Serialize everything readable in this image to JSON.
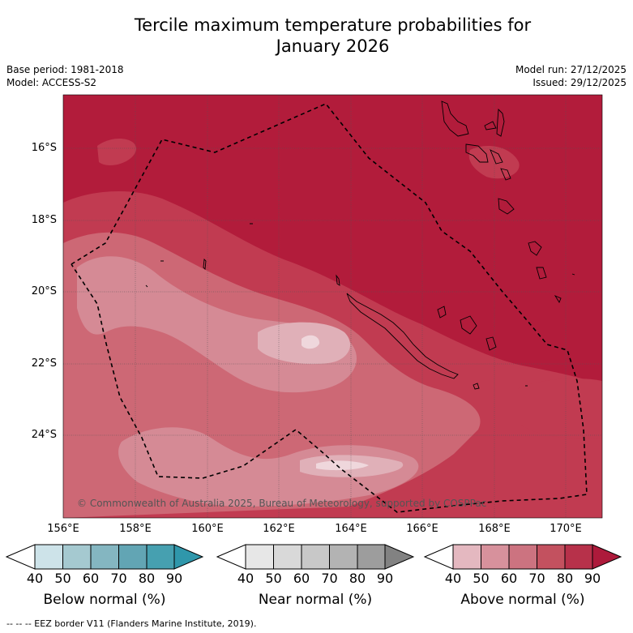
{
  "title": {
    "line1": "Tercile maximum temperature probabilities for",
    "line2": "January 2026"
  },
  "meta": {
    "base_period": "Base period: 1981-2018",
    "model": "Model: ACCESS-S2",
    "model_run": "Model run: 27/12/2025",
    "issued": "Issued: 29/12/2025"
  },
  "map": {
    "latitude_labels": [
      "16°S",
      "18°S",
      "20°S",
      "22°S",
      "24°S"
    ],
    "longitude_labels": [
      "156°E",
      "158°E",
      "160°E",
      "162°E",
      "164°E",
      "166°E",
      "168°E",
      "170°E"
    ],
    "copyright": "© Commonwealth of Australia 2025, Bureau of Meteorology, supported by COSPPac"
  },
  "colorbars": [
    {
      "label": "Below normal (%)",
      "ticks": [
        "40",
        "50",
        "60",
        "70",
        "80",
        "90"
      ],
      "colors": [
        "#ffffff",
        "#cde3e9",
        "#a5c9d0",
        "#84b6c1",
        "#62a5b4",
        "#46a0b0",
        "#2f97ab"
      ]
    },
    {
      "label": "Near normal (%)",
      "ticks": [
        "40",
        "50",
        "60",
        "70",
        "80",
        "90"
      ],
      "colors": [
        "#ffffff",
        "#e7e7e7",
        "#d9d9d9",
        "#c8c8c8",
        "#b3b3b3",
        "#9d9d9d",
        "#828282"
      ]
    },
    {
      "label": "Above normal (%)",
      "ticks": [
        "40",
        "50",
        "60",
        "70",
        "80",
        "90"
      ],
      "colors": [
        "#ffffff",
        "#e4b8c0",
        "#d7919c",
        "#cc7380",
        "#c3515f",
        "#b7314a",
        "#ad1a3b"
      ]
    }
  ],
  "footer": "--  --  -- EEZ border V11 (Flanders Marine Institute, 2019)."
}
